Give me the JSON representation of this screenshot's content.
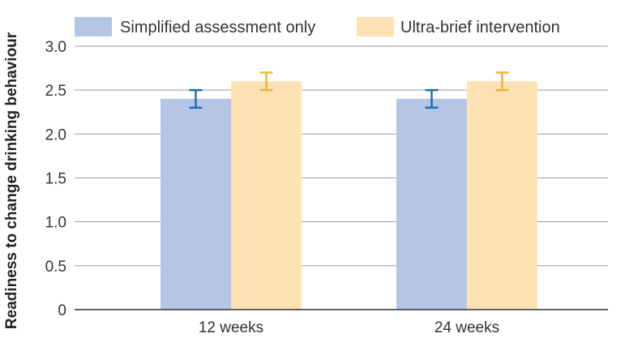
{
  "chart_data": {
    "type": "bar",
    "categories": [
      "12 weeks",
      "24 weeks"
    ],
    "series": [
      {
        "name": "Simplified assessment only",
        "values": [
          2.4,
          2.4
        ],
        "error_low": [
          2.3,
          2.3
        ],
        "error_high": [
          2.5,
          2.5
        ],
        "color": "#b4c6e4",
        "error_color": "#1f6fb6"
      },
      {
        "name": "Ultra-brief intervention",
        "values": [
          2.6,
          2.6
        ],
        "error_low": [
          2.5,
          2.5
        ],
        "error_high": [
          2.7,
          2.7
        ],
        "color": "#fde3b4",
        "error_color": "#f2b233"
      }
    ],
    "ylabel": "Readiness to change drinking behaviour",
    "xlabel": "",
    "ylim": [
      0,
      3.0
    ],
    "yticks": [
      "0",
      "0.5",
      "1.0",
      "1.5",
      "2.0",
      "2.5",
      "3.0"
    ],
    "grid": true,
    "legend_position": "top"
  }
}
